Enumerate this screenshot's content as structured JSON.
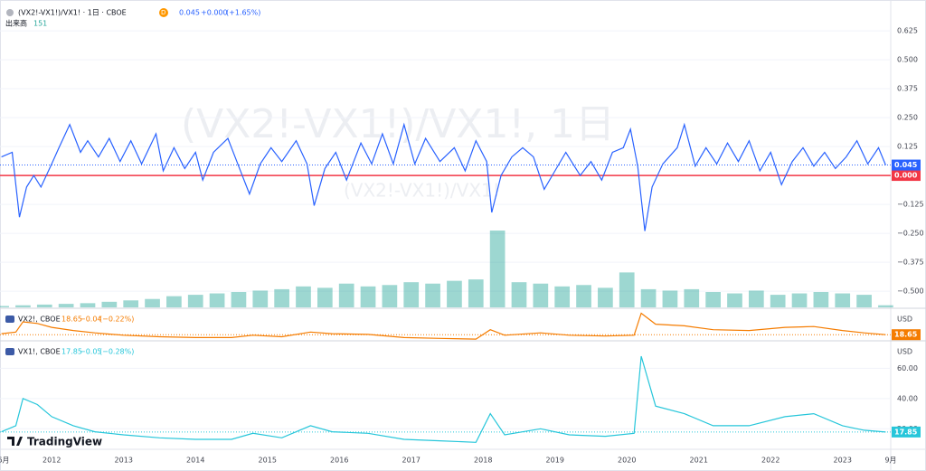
{
  "chart_data": [
    {
      "type": "line",
      "title": "(VX2!-VX1!)/VX1! · 1日 · CBOE",
      "interval": "D",
      "change": "+0.000",
      "change_pct": "(+1.65%)",
      "watermark": "(VX2!-VX1!)/VX1!, 1日",
      "watermark_sub": "(VX2!-VX1!)/VX1!",
      "color": "#2962ff",
      "x": [
        2011.3,
        2011.45,
        2011.55,
        2011.65,
        2011.75,
        2011.85,
        2012.0,
        2012.1,
        2012.25,
        2012.4,
        2012.5,
        2012.65,
        2012.8,
        2012.95,
        2013.1,
        2013.25,
        2013.45,
        2013.55,
        2013.7,
        2013.85,
        2014.0,
        2014.1,
        2014.25,
        2014.45,
        2014.6,
        2014.75,
        2014.9,
        2015.05,
        2015.2,
        2015.4,
        2015.55,
        2015.65,
        2015.8,
        2015.95,
        2016.1,
        2016.3,
        2016.45,
        2016.6,
        2016.75,
        2016.9,
        2017.05,
        2017.2,
        2017.4,
        2017.6,
        2017.75,
        2017.9,
        2018.05,
        2018.12,
        2018.25,
        2018.4,
        2018.55,
        2018.7,
        2018.85,
        2019.0,
        2019.15,
        2019.35,
        2019.5,
        2019.65,
        2019.8,
        2019.95,
        2020.05,
        2020.15,
        2020.2,
        2020.25,
        2020.35,
        2020.5,
        2020.7,
        2020.8,
        2020.95,
        2021.1,
        2021.25,
        2021.4,
        2021.55,
        2021.7,
        2021.85,
        2022.0,
        2022.15,
        2022.3,
        2022.45,
        2022.6,
        2022.75,
        2022.9,
        2023.05,
        2023.2,
        2023.35,
        2023.5,
        2023.6
      ],
      "values": [
        0.08,
        0.1,
        -0.18,
        -0.05,
        0.0,
        -0.05,
        0.05,
        0.12,
        0.22,
        0.1,
        0.15,
        0.08,
        0.16,
        0.06,
        0.15,
        0.05,
        0.18,
        0.02,
        0.12,
        0.03,
        0.1,
        -0.02,
        0.1,
        0.16,
        0.04,
        -0.08,
        0.05,
        0.12,
        0.06,
        0.15,
        0.05,
        -0.13,
        0.03,
        0.1,
        -0.02,
        0.14,
        0.05,
        0.18,
        0.05,
        0.22,
        0.05,
        0.16,
        0.06,
        0.12,
        0.02,
        0.15,
        0.06,
        -0.16,
        0.0,
        0.08,
        0.12,
        0.08,
        -0.06,
        0.02,
        0.1,
        0.0,
        0.06,
        -0.02,
        0.1,
        0.12,
        0.2,
        0.04,
        -0.1,
        -0.24,
        -0.05,
        0.05,
        0.12,
        0.22,
        0.04,
        0.12,
        0.05,
        0.14,
        0.06,
        0.15,
        0.02,
        0.1,
        -0.04,
        0.06,
        0.12,
        0.04,
        0.1,
        0.03,
        0.08,
        0.15,
        0.05,
        0.12,
        0.045
      ],
      "hline": {
        "value": 0,
        "label": "0.000",
        "color": "#f23645"
      },
      "ylim": [
        -0.57,
        0.68
      ],
      "yticks": [
        0.625,
        {
          "value": 0.5,
          "label": "0.500"
        },
        0.375,
        {
          "value": 0.25,
          "label": "0.250"
        },
        0.125,
        {
          "value": -0.125,
          "label": "−0.125"
        },
        {
          "value": -0.25,
          "label": "−0.250"
        },
        {
          "value": -0.375,
          "label": "−0.375"
        },
        {
          "value": -0.5,
          "label": "−0.500"
        }
      ],
      "xlim": [
        2011.28,
        2023.67
      ],
      "xticks": [
        {
          "value": 2011.33,
          "label": "6月"
        },
        2012,
        2013,
        2014,
        2015,
        2016,
        2017,
        2018,
        2019,
        2020,
        2021,
        2022,
        2023,
        {
          "value": 2023.67,
          "label": "9月"
        }
      ],
      "volume": {
        "name": "出来高",
        "color": "#26a69a",
        "x": [
          2011.3,
          2011.6,
          2011.9,
          2012.2,
          2012.5,
          2012.8,
          2013.1,
          2013.4,
          2013.7,
          2014.0,
          2014.3,
          2014.6,
          2014.9,
          2015.2,
          2015.5,
          2015.8,
          2016.1,
          2016.4,
          2016.7,
          2017.0,
          2017.3,
          2017.6,
          2017.9,
          2018.2,
          2018.5,
          2018.8,
          2019.1,
          2019.4,
          2019.7,
          2020.0,
          2020.3,
          2020.6,
          2020.9,
          2021.2,
          2021.5,
          2021.8,
          2022.1,
          2022.4,
          2022.7,
          2023.0,
          2023.3,
          2023.6
        ],
        "values": [
          100,
          150,
          200,
          250,
          300,
          400,
          500,
          600,
          800,
          900,
          1000,
          1100,
          1200,
          1300,
          1500,
          1400,
          1700,
          1500,
          1600,
          1800,
          1700,
          1900,
          2000,
          5500,
          1800,
          1700,
          1500,
          1600,
          1400,
          2500,
          1300,
          1200,
          1300,
          1100,
          1000,
          1200,
          900,
          1000,
          1100,
          1000,
          900,
          151
        ]
      }
    },
    {
      "type": "line",
      "title": "VX2!, CBOE",
      "change": "−0.04",
      "change_pct": "(−0.22%)",
      "currency": "USD",
      "color": "#f57c00",
      "x": [
        2011.3,
        2011.5,
        2011.6,
        2011.8,
        2012.0,
        2012.3,
        2012.6,
        2013.0,
        2013.5,
        2014.0,
        2014.5,
        2014.8,
        2015.2,
        2015.6,
        2015.9,
        2016.4,
        2016.9,
        2017.4,
        2017.9,
        2018.1,
        2018.3,
        2018.8,
        2019.2,
        2019.7,
        2020.1,
        2020.2,
        2020.4,
        2020.8,
        2021.2,
        2021.7,
        2022.2,
        2022.6,
        2023.0,
        2023.3,
        2023.6
      ],
      "values": [
        20,
        22,
        35,
        33,
        28,
        24,
        21,
        18,
        16,
        15,
        15,
        18,
        16,
        22,
        20,
        19,
        15,
        14,
        13,
        25,
        18,
        21,
        18,
        17,
        18,
        46,
        32,
        30,
        25,
        24,
        28,
        29,
        24,
        21,
        18.65
      ],
      "ylim": [
        12,
        50
      ]
    },
    {
      "type": "line",
      "title": "VX1!, CBOE",
      "change": "−0.05",
      "change_pct": "(−0.28%)",
      "currency": "USD",
      "color": "#26c6da",
      "x": [
        2011.3,
        2011.5,
        2011.6,
        2011.8,
        2012.0,
        2012.3,
        2012.6,
        2013.0,
        2013.5,
        2014.0,
        2014.5,
        2014.8,
        2015.2,
        2015.6,
        2015.9,
        2016.4,
        2016.9,
        2017.4,
        2017.9,
        2018.1,
        2018.3,
        2018.8,
        2019.2,
        2019.7,
        2020.1,
        2020.2,
        2020.4,
        2020.8,
        2021.2,
        2021.7,
        2022.2,
        2022.6,
        2023.0,
        2023.3,
        2023.6
      ],
      "values": [
        18,
        22,
        40,
        36,
        28,
        22,
        18,
        16,
        14,
        13,
        13,
        17,
        14,
        22,
        18,
        17,
        13,
        12,
        11,
        30,
        16,
        20,
        16,
        15,
        17,
        68,
        35,
        30,
        22,
        22,
        28,
        30,
        22,
        19,
        17.85
      ],
      "ylim": [
        7,
        77
      ],
      "yticks": [
        {
          "value": 20,
          "label": "20.00"
        },
        {
          "value": 40,
          "label": "40.00"
        },
        {
          "value": 60,
          "label": "60.00"
        }
      ]
    }
  ],
  "brand": "TradingView"
}
